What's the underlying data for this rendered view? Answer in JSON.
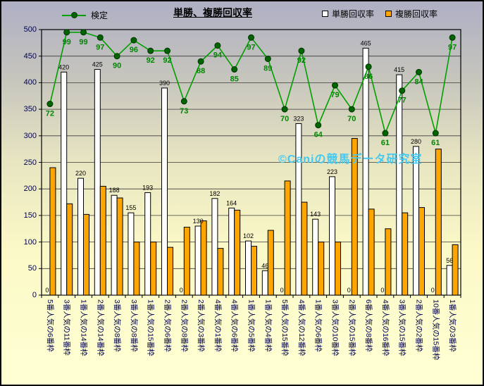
{
  "title": "単勝、複勝回収率",
  "legend": {
    "line": "検定",
    "win": "単勝回収率",
    "place": "複勝回収率"
  },
  "watermark": "©Caniの競馬データ研究室",
  "colors": {
    "win_bar": "#FFFFFF",
    "place_bar": "#FFA500",
    "line": "#00A000",
    "marker": "#006400",
    "line_label": "#008800",
    "bar_label": "#000000",
    "axis_text": "#00004D",
    "grid": "#3A3A3A",
    "watermark": "#45C9F1"
  },
  "chart_data": {
    "type": "bar",
    "title": "単勝、複勝回収率",
    "categories": [
      "5番人気の6番枠",
      "3番人気の11番枠",
      "1番人気の14番枠",
      "2番人気の14番枠",
      "3番人気の8番枠",
      "3番人気の8番枠",
      "1番人気の15番枠",
      "2番人気の6番枠",
      "2番人気の8番枠",
      "2番人気の3番枠",
      "4番人気の1番枠",
      "4番人気の6番枠",
      "1番人気の5番枠",
      "1番人気の4番枠",
      "5番人気の15番枠",
      "4番人気の12番枠",
      "1番人気の6番枠",
      "3番人気の10番枠",
      "2番人気の15番枠",
      "6番人気の8番枠",
      "4番人気の16番枠",
      "3番人気の15番枠",
      "2番人気の2番枠",
      "10番人気の15番枠",
      "1番人気の3番枠"
    ],
    "series": [
      {
        "name": "検定",
        "type": "line",
        "value_scale_on_axis": 5,
        "values": [
          72,
          99,
          99,
          97,
          90,
          96,
          92,
          92,
          73,
          88,
          94,
          85,
          97,
          89,
          70,
          92,
          64,
          79,
          70,
          86,
          61,
          77,
          84,
          61,
          97
        ]
      },
      {
        "name": "単勝回収率",
        "type": "bar",
        "color": "#FFFFFF",
        "data_labels": true,
        "values": [
          0,
          420,
          220,
          425,
          188,
          155,
          193,
          390,
          0,
          130,
          182,
          164,
          102,
          46,
          0,
          323,
          143,
          223,
          0,
          465,
          0,
          415,
          280,
          0,
          56
        ]
      },
      {
        "name": "複勝回収率",
        "type": "bar",
        "color": "#FFA500",
        "data_labels": false,
        "values": [
          240,
          172,
          152,
          205,
          183,
          100,
          100,
          90,
          128,
          140,
          88,
          160,
          92,
          122,
          215,
          175,
          100,
          100,
          295,
          162,
          125,
          155,
          165,
          275,
          95
        ]
      }
    ],
    "ylim": [
      0,
      500
    ],
    "ytick_step": 50,
    "grid": true,
    "legend_position": "top"
  }
}
